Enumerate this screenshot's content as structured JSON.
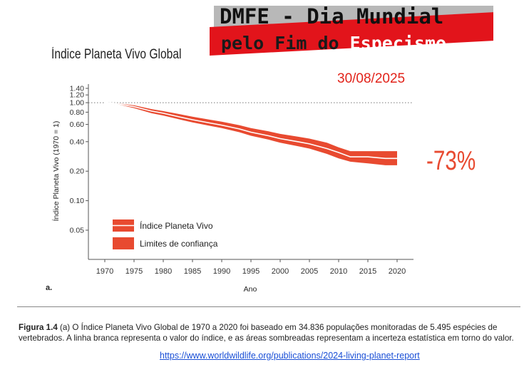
{
  "banner": {
    "line1": "DMFE - Dia Mundial",
    "line2_prefix": "pelo Fim do ",
    "line2_highlight": "Especismo"
  },
  "date": "30/08/2025",
  "decline_label": "-73%",
  "panel_letter": "a.",
  "caption": {
    "figure_label": "Figura 1.4",
    "text": "(a) O Índice Planeta Vivo Global de 1970 a 2020 foi baseado em 34.836 populações monitoradas de 5.495 espécies de vertebrados. A linha branca representa o valor do índice, e as áreas sombreadas representam a incerteza estatística em torno do valor."
  },
  "source_url": "https://www.worldwildlife.org/publications/2024-living-planet-report",
  "colors": {
    "band": "#e84a30",
    "line": "#ffffff",
    "banner_red": "#e2141b",
    "banner_grey": "#b8b8b8"
  },
  "chart_data": {
    "type": "line",
    "title": "Índice Planeta Vivo Global",
    "xlabel": "Ano",
    "ylabel": "Índice Planeta Vivo (1970 = 1)",
    "y_scale": "log",
    "ylim": [
      0.05,
      1.4
    ],
    "xlim": [
      1970,
      2020
    ],
    "x_ticks": [
      "1970",
      "1975",
      "1980",
      "1985",
      "1990",
      "1995",
      "2000",
      "2005",
      "2010",
      "2015",
      "2020"
    ],
    "y_ticks": [
      "1.40",
      "1.20",
      "1.00",
      "0.80",
      "0.60",
      "0.40",
      "0.20",
      "0.10",
      "0.05"
    ],
    "reference_line": 1.0,
    "legend": [
      "Índice Planeta Vivo",
      "Limites de confiança"
    ],
    "legend_position": "bottom-left",
    "series": [
      {
        "name": "Índice Planeta Vivo",
        "x": [
          1970,
          1972,
          1975,
          1978,
          1980,
          1983,
          1985,
          1988,
          1990,
          1993,
          1995,
          1998,
          2000,
          2003,
          2005,
          2008,
          2010,
          2012,
          2015,
          2018,
          2020
        ],
        "values": [
          1.0,
          0.98,
          0.91,
          0.82,
          0.78,
          0.71,
          0.67,
          0.62,
          0.59,
          0.54,
          0.5,
          0.46,
          0.43,
          0.4,
          0.38,
          0.34,
          0.31,
          0.28,
          0.28,
          0.27,
          0.27
        ],
        "lower": [
          1.0,
          0.97,
          0.88,
          0.78,
          0.74,
          0.67,
          0.63,
          0.58,
          0.55,
          0.5,
          0.46,
          0.42,
          0.39,
          0.36,
          0.34,
          0.3,
          0.27,
          0.25,
          0.24,
          0.23,
          0.23
        ],
        "upper": [
          1.0,
          0.99,
          0.94,
          0.86,
          0.82,
          0.76,
          0.72,
          0.67,
          0.64,
          0.59,
          0.55,
          0.51,
          0.48,
          0.45,
          0.43,
          0.39,
          0.35,
          0.32,
          0.32,
          0.32,
          0.32
        ]
      }
    ]
  }
}
